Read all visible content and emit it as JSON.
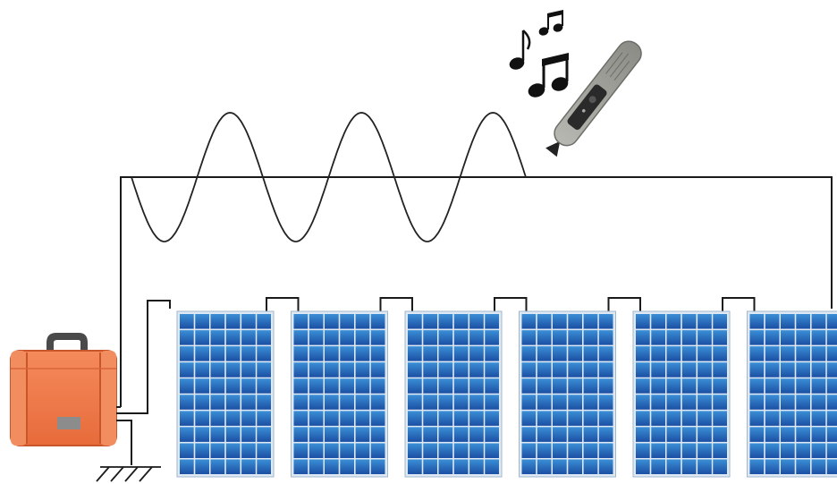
{
  "diagram": {
    "wave_cycles": 3,
    "panel_count": 6,
    "panel_grid": {
      "columns": 6,
      "rows": 10
    },
    "icons": [
      "music-notes-icon",
      "tracer-probe-icon",
      "transmitter-case-icon",
      "ground-icon"
    ],
    "colors": {
      "wire": "#1a1a1a",
      "panel_cell_light": "#3b8fd6",
      "panel_cell_dark": "#1b4fa3",
      "panel_frame": "#dfe9f3",
      "case_body": "#f07a4a",
      "case_dark": "#c9552a",
      "probe_body": "#9a9a94",
      "probe_panel": "#2a2a2a",
      "notes": "#111111"
    }
  }
}
